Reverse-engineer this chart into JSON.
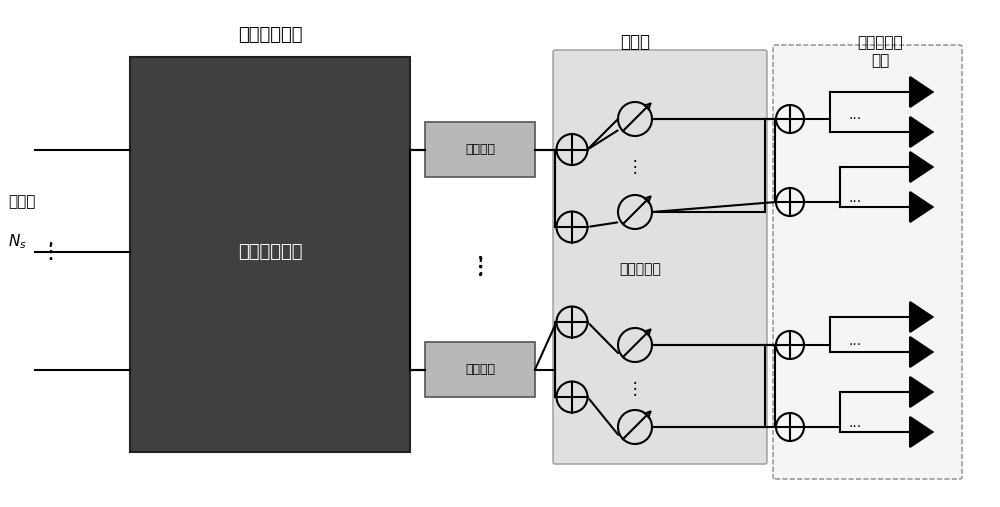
{
  "bg_color": "#ffffff",
  "title": "",
  "text_color": "#000000",
  "dark_box_color": "#404040",
  "light_box_color": "#b0b0b0",
  "analog_bg_color": "#e0e0e0",
  "subarray_bg_color": "#f0f0f0",
  "label_digital": "数字信号处理",
  "label_baseband": "基带信号处理",
  "label_rf": "射频链路",
  "label_analog_domain": "模拟域",
  "label_analog_phaseshifter": "模拟移相器",
  "label_subarray": "不规则贴片\n子阵",
  "label_datastream": "数据流",
  "label_Ns": "N_s"
}
